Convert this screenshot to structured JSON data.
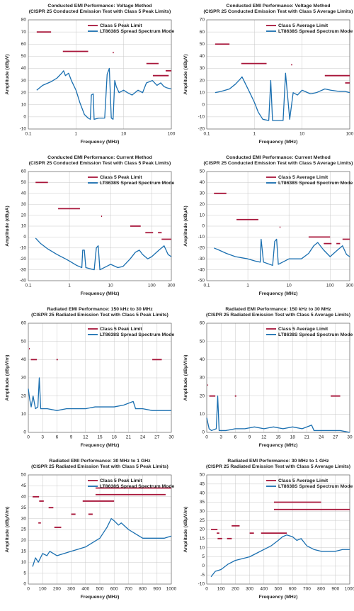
{
  "chart_data": [
    {
      "type": "line",
      "title": "Conducted EMI Performance: Voltage Method",
      "subtitle": "(CISPR 25 Conducted Emission Test with Class 5 Peak Limits)",
      "x_label": "Frequency (MHz)",
      "y_label": "Amplitude (dBµV)",
      "xscale": "log",
      "xlim": [
        0.1,
        100
      ],
      "xticks": [
        0.1,
        1,
        10,
        100
      ],
      "ylim": [
        -10,
        80
      ],
      "yticks": [
        -10,
        0,
        10,
        20,
        30,
        40,
        50,
        60,
        70,
        80
      ],
      "grid": true,
      "series": [
        {
          "name": "Class 5 Peak Limit",
          "color": "#a8163a",
          "x": [
            0.15,
            0.3,
            0.3,
            0.53,
            1.8,
            1.8,
            5.9,
            6.2,
            6.2,
            30,
            54,
            54,
            41,
            88,
            88,
            76,
            100
          ],
          "values": [
            70,
            70,
            null,
            54,
            54,
            null,
            53,
            53,
            null,
            44,
            44,
            null,
            34,
            34,
            null,
            38,
            38
          ]
        },
        {
          "name": "LT8638S Spread Spectrum Mode",
          "color": "#1a6fb0",
          "x": [
            0.15,
            0.2,
            0.3,
            0.4,
            0.5,
            0.55,
            0.6,
            0.7,
            0.8,
            1,
            1.2,
            1.5,
            1.8,
            2,
            2.1,
            2.3,
            2.4,
            3,
            4,
            4.5,
            5,
            5.5,
            6,
            6.5,
            7,
            8,
            10,
            12,
            15,
            20,
            25,
            30,
            40,
            50,
            60,
            70,
            80,
            100
          ],
          "values": [
            22,
            26,
            29,
            32,
            36,
            38,
            34,
            36,
            30,
            22,
            12,
            2,
            -1,
            -2,
            18,
            19,
            -2,
            -1,
            -1,
            35,
            40,
            -1,
            -2,
            30,
            25,
            20,
            22,
            20,
            18,
            22,
            20,
            28,
            30,
            26,
            28,
            25,
            24,
            23
          ]
        }
      ]
    },
    {
      "type": "line",
      "title": "Conducted EMI Performance: Voltage Method",
      "subtitle": "(CISPR 25 Conducted Emission Test with Class 5 Average Limits)",
      "x_label": "Frequency (MHz)",
      "y_label": "Amplitude (dBµV)",
      "xscale": "log",
      "xlim": [
        0.1,
        100
      ],
      "xticks": [
        0.1,
        1,
        10,
        100
      ],
      "ylim": [
        -20,
        70
      ],
      "yticks": [
        -20,
        -10,
        0,
        10,
        20,
        30,
        40,
        50,
        60,
        70
      ],
      "grid": true,
      "series": [
        {
          "name": "Class 5 Average Limit",
          "color": "#a8163a",
          "x": [
            0.15,
            0.3,
            0.3,
            0.53,
            1.8,
            1.8,
            5.9,
            6.2,
            6.2,
            30,
            100,
            100,
            80,
            100
          ],
          "values": [
            50,
            50,
            null,
            34,
            34,
            null,
            33,
            33,
            null,
            24,
            24,
            null,
            18,
            18
          ]
        },
        {
          "name": "LT8638S Spread Spectrum Mode",
          "color": "#1a6fb0",
          "x": [
            0.15,
            0.2,
            0.3,
            0.4,
            0.5,
            0.55,
            0.6,
            0.8,
            1,
            1.2,
            1.5,
            2,
            2.2,
            2.4,
            4,
            4.5,
            5.5,
            6.5,
            8,
            10,
            15,
            20,
            30,
            40,
            60,
            80,
            100
          ],
          "values": [
            10,
            11,
            13,
            17,
            21,
            23,
            20,
            10,
            2,
            -6,
            -12,
            -13,
            20,
            -13,
            -13,
            26,
            -12,
            10,
            8,
            12,
            9,
            10,
            13,
            12,
            11,
            11,
            10
          ]
        }
      ]
    },
    {
      "type": "line",
      "title": "Conducted EMI Performance: Current Method",
      "subtitle": "(CISPR 25 Conducted Emission Test with Class 5 Peak Limits)",
      "x_label": "Frequency (MHz)",
      "y_label": "Amplitude (dBµA)",
      "xscale": "log",
      "xlim": [
        0.1,
        300
      ],
      "xticks": [
        0.1,
        1,
        10,
        100,
        300
      ],
      "ylim": [
        -40,
        60
      ],
      "yticks": [
        -40,
        -30,
        -20,
        -10,
        0,
        10,
        20,
        30,
        40,
        50,
        60
      ],
      "grid": true,
      "series": [
        {
          "name": "Class 5 Peak Limit",
          "color": "#a8163a",
          "x": [
            0.15,
            0.3,
            0.3,
            0.53,
            1.8,
            1.8,
            5.9,
            6.2,
            6.2,
            30,
            54,
            54,
            70,
            108,
            108,
            142,
            175,
            175,
            174,
            300
          ],
          "values": [
            50,
            50,
            null,
            26,
            26,
            null,
            19,
            19,
            null,
            10,
            10,
            null,
            4,
            4,
            null,
            4,
            4,
            null,
            -2,
            -2
          ]
        },
        {
          "name": "LT8638S Spread Spectrum Mode",
          "color": "#1a6fb0",
          "x": [
            0.15,
            0.2,
            0.3,
            0.5,
            0.8,
            1,
            1.5,
            2,
            2.1,
            2.3,
            2.5,
            4,
            4.5,
            5,
            5.5,
            7,
            10,
            15,
            20,
            30,
            40,
            50,
            60,
            80,
            100,
            150,
            200,
            250,
            300
          ],
          "values": [
            -1,
            -6,
            -11,
            -16,
            -20,
            -22,
            -26,
            -28,
            -12,
            -12,
            -28,
            -30,
            -10,
            -8,
            -30,
            -28,
            -25,
            -28,
            -27,
            -20,
            -14,
            -12,
            -16,
            -20,
            -18,
            -12,
            -8,
            -16,
            -18
          ]
        }
      ]
    },
    {
      "type": "line",
      "title": "Conducted EMI Performance: Current Method",
      "subtitle": "(CISPR 25 Conducted Emission Test with Class 5 Average Limits)",
      "x_label": "Frequency (MHz)",
      "y_label": "Amplitude (dBµA)",
      "xscale": "log",
      "xlim": [
        0.1,
        300
      ],
      "xticks": [
        0.1,
        1,
        10,
        100,
        300
      ],
      "ylim": [
        -50,
        50
      ],
      "yticks": [
        -50,
        -40,
        -30,
        -20,
        -10,
        0,
        10,
        20,
        30,
        40,
        50
      ],
      "grid": true,
      "series": [
        {
          "name": "Class 5 Average Limit",
          "color": "#a8163a",
          "x": [
            0.15,
            0.3,
            0.3,
            0.53,
            1.8,
            1.8,
            5.9,
            6.2,
            6.2,
            30,
            100,
            100,
            70,
            108,
            108,
            142,
            175,
            175,
            200,
            300
          ],
          "values": [
            30,
            30,
            null,
            6,
            6,
            null,
            -1,
            -1,
            null,
            -10,
            -10,
            null,
            -16,
            -16,
            null,
            -16,
            -16,
            null,
            -12,
            -12
          ]
        },
        {
          "name": "LT8638S Spread Spectrum Mode",
          "color": "#1a6fb0",
          "x": [
            0.15,
            0.2,
            0.3,
            0.5,
            1,
            1.5,
            2,
            2.1,
            2.4,
            4,
            4.5,
            5,
            5.5,
            7,
            10,
            20,
            30,
            40,
            50,
            70,
            100,
            150,
            200,
            250,
            300
          ],
          "values": [
            -20,
            -22,
            -25,
            -28,
            -30,
            -32,
            -33,
            -12,
            -33,
            -36,
            -14,
            -12,
            -35,
            -33,
            -30,
            -30,
            -25,
            -18,
            -15,
            -22,
            -28,
            -22,
            -18,
            -26,
            -28
          ]
        }
      ]
    },
    {
      "type": "line",
      "title": "Radiated EMI Performance: 150 kHz to 30 MHz",
      "subtitle": "(CISPR 25 Radiated Emission Test with Class 5 Peak Limits)",
      "x_label": "Frequency (MHz)",
      "y_label": "Amplitude (dBµV/m)",
      "xscale": "linear",
      "xlim": [
        0,
        30
      ],
      "xticks": [
        0,
        3,
        6,
        9,
        12,
        15,
        18,
        21,
        24,
        27,
        30
      ],
      "ylim": [
        0,
        60
      ],
      "yticks": [
        0,
        10,
        20,
        30,
        40,
        50,
        60
      ],
      "grid": true,
      "series": [
        {
          "name": "Class 5 Peak Limit",
          "color": "#a8163a",
          "x": [
            0.15,
            0.3,
            0.3,
            0.53,
            1.8,
            1.8,
            5.9,
            6.2,
            6.2,
            26,
            28
          ],
          "values": [
            46,
            46,
            null,
            40,
            40,
            null,
            40,
            40,
            null,
            40,
            40
          ]
        },
        {
          "name": "LT8638S Spread Spectrum Mode",
          "color": "#1a6fb0",
          "x": [
            0,
            0.3,
            0.6,
            1,
            1.5,
            2,
            2.3,
            2.6,
            4,
            6,
            8,
            10,
            12,
            14,
            16,
            18,
            20,
            22,
            22.5,
            24,
            26,
            28,
            30
          ],
          "values": [
            24,
            18,
            14,
            20,
            13,
            14,
            30,
            13,
            13,
            12,
            13,
            13,
            13,
            14,
            14,
            14,
            15,
            17,
            13,
            13,
            12,
            12,
            12
          ]
        }
      ]
    },
    {
      "type": "line",
      "title": "Radiated EMI Performance: 150 kHz to 30 MHz",
      "subtitle": "(CISPR 25 Radiated Emission Test with Class 5 Average Limits)",
      "x_label": "Frequency (MHz)",
      "y_label": "Amplitude (dBµV/m)",
      "xscale": "linear",
      "xlim": [
        0,
        30
      ],
      "xticks": [
        0,
        3,
        6,
        9,
        12,
        15,
        18,
        21,
        24,
        27,
        30
      ],
      "ylim": [
        0,
        60
      ],
      "yticks": [
        0,
        10,
        20,
        30,
        40,
        50,
        60
      ],
      "grid": true,
      "series": [
        {
          "name": "Class 5 Average Limit",
          "color": "#a8163a",
          "x": [
            0.15,
            0.3,
            0.3,
            0.53,
            1.8,
            1.8,
            5.9,
            6.2,
            6.2,
            26,
            28
          ],
          "values": [
            26,
            26,
            null,
            20,
            20,
            null,
            20,
            20,
            null,
            20,
            20
          ]
        },
        {
          "name": "LT8638S Spread Spectrum Mode",
          "color": "#1a6fb0",
          "x": [
            0,
            0.5,
            1,
            2,
            2.3,
            2.6,
            4,
            6,
            8,
            10,
            12,
            14,
            16,
            18,
            20,
            22,
            22.5,
            24,
            26,
            28,
            30
          ],
          "values": [
            8,
            2,
            1,
            2,
            20,
            1,
            1,
            2,
            2,
            3,
            2,
            3,
            2,
            3,
            2,
            4,
            1,
            1,
            1,
            1,
            0
          ]
        }
      ]
    },
    {
      "type": "line",
      "title": "Radiated EMI Performance: 30 MHz to 1 GHz",
      "subtitle": "(CISPR 25 Radiated Emission Test with Class 5 Peak Limits)",
      "x_label": "Frequency (MHz)",
      "y_label": "Amplitude (dBµV/m)",
      "xscale": "linear",
      "xlim": [
        0,
        1000
      ],
      "xticks": [
        0,
        100,
        200,
        300,
        400,
        500,
        600,
        700,
        800,
        900,
        1000
      ],
      "ylim": [
        0,
        50
      ],
      "yticks": [
        0,
        5,
        10,
        15,
        20,
        25,
        30,
        35,
        40,
        45,
        50
      ],
      "grid": true,
      "series": [
        {
          "name": "Class 5 Peak Limit",
          "color": "#a8163a",
          "x": [
            30,
            75,
            75,
            70,
            88,
            88,
            76,
            108,
            108,
            142,
            175,
            175,
            182,
            230,
            230,
            300,
            330,
            330,
            420,
            450,
            450,
            380,
            600,
            600,
            470,
            800,
            800,
            800,
            1000,
            1000,
            470,
            960
          ],
          "values": [
            40,
            40,
            null,
            28,
            28,
            null,
            38,
            38,
            null,
            35,
            35,
            null,
            26,
            26,
            null,
            32,
            32,
            null,
            32,
            32,
            null,
            38,
            38,
            null,
            44,
            44,
            null,
            44,
            44,
            null,
            41,
            41
          ]
        },
        {
          "name": "LT8638S Spread Spectrum Mode",
          "color": "#1a6fb0",
          "x": [
            30,
            50,
            70,
            100,
            130,
            150,
            200,
            250,
            300,
            350,
            400,
            450,
            500,
            550,
            580,
            600,
            630,
            650,
            700,
            750,
            800,
            850,
            900,
            950,
            1000
          ],
          "values": [
            8,
            12,
            10,
            14,
            13,
            15,
            13,
            14,
            15,
            16,
            17,
            19,
            21,
            26,
            30,
            29,
            27,
            28,
            25,
            23,
            21,
            21,
            21,
            21,
            22
          ]
        }
      ]
    },
    {
      "type": "line",
      "title": "Radiated EMI Performance: 30 MHz to 1 GHz",
      "subtitle": "(CISPR 25 Radiated Emission Test with Class 5 Average Limits)",
      "x_label": "Frequency (MHz)",
      "y_label": "Amplitude (dBµV/m)",
      "xscale": "linear",
      "xlim": [
        0,
        1000
      ],
      "xticks": [
        0,
        100,
        200,
        300,
        400,
        500,
        600,
        700,
        800,
        900,
        1000
      ],
      "ylim": [
        -10,
        50
      ],
      "yticks": [
        -10,
        -5,
        0,
        5,
        10,
        15,
        20,
        25,
        30,
        35,
        40,
        45,
        50
      ],
      "grid": true,
      "series": [
        {
          "name": "Class 5 Average Limit",
          "color": "#a8163a",
          "x": [
            30,
            75,
            75,
            70,
            88,
            88,
            76,
            108,
            108,
            142,
            175,
            175,
            174,
            230,
            230,
            300,
            330,
            330,
            380,
            560,
            560,
            470,
            800,
            800,
            470,
            1000
          ],
          "values": [
            20,
            20,
            null,
            18,
            18,
            null,
            15,
            15,
            null,
            15,
            15,
            null,
            22,
            22,
            null,
            18,
            18,
            null,
            18,
            18,
            null,
            35,
            35,
            null,
            31,
            31
          ]
        },
        {
          "name": "LT8638S Spread Spectrum Mode",
          "color": "#1a6fb0",
          "x": [
            30,
            60,
            100,
            150,
            200,
            250,
            300,
            350,
            400,
            450,
            500,
            530,
            560,
            600,
            630,
            660,
            700,
            750,
            800,
            850,
            900,
            950,
            1000
          ],
          "values": [
            -6,
            -3,
            -2,
            1,
            3,
            4,
            5,
            7,
            9,
            11,
            14,
            16,
            17,
            16,
            14,
            15,
            11,
            9,
            8,
            8,
            8,
            9,
            9
          ]
        }
      ]
    }
  ]
}
